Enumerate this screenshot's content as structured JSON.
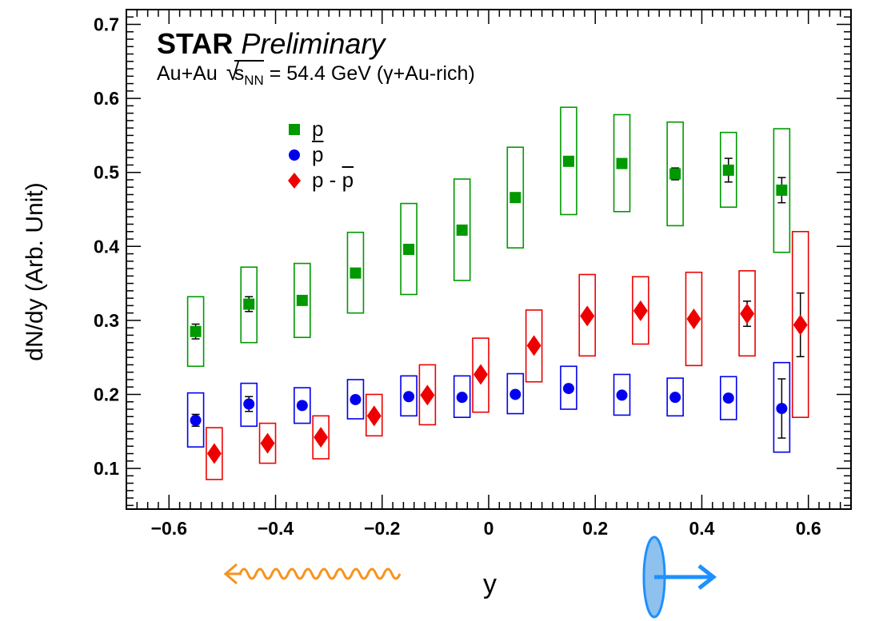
{
  "title": {
    "experiment": "STAR",
    "status": "Preliminary",
    "system": "Au+Au",
    "sqrt_symbol": "√",
    "energy_var": "s",
    "energy_sub": "NN",
    "energy_value": "= 54.4 GeV (γ+Au-rich)"
  },
  "colors": {
    "p": "#009900",
    "pbar": "#0000ee",
    "net_p": "#ee0000",
    "photon_arrow": "#f7931e",
    "nucleus": "#8fc1ee",
    "nucleus_arrow": "#1e90ff"
  },
  "chart_data": {
    "type": "scatter",
    "xlabel": "y",
    "ylabel": "dN/dy (Arb. Unit)",
    "xlim": [
      -0.68,
      0.68
    ],
    "ylim": [
      0.045,
      0.72
    ],
    "x_ticks": [
      -0.6,
      -0.4,
      -0.2,
      0,
      0.2,
      0.4,
      0.6
    ],
    "x_tick_labels": [
      "−0.6",
      "−0.4",
      "−0.2",
      "0",
      "0.2",
      "0.4",
      "0.6"
    ],
    "y_ticks": [
      0.1,
      0.2,
      0.3,
      0.4,
      0.5,
      0.6,
      0.7
    ],
    "y_tick_labels": [
      "0.1",
      "0.2",
      "0.3",
      "0.4",
      "0.5",
      "0.6",
      "0.7"
    ],
    "legend_position": "upper-left",
    "series": [
      {
        "key": "p",
        "name": "p",
        "marker": "square",
        "x": [
          -0.55,
          -0.45,
          -0.35,
          -0.25,
          -0.15,
          -0.05,
          0.05,
          0.15,
          0.25,
          0.35,
          0.45,
          0.55
        ],
        "y": [
          0.285,
          0.322,
          0.327,
          0.364,
          0.396,
          0.422,
          0.466,
          0.515,
          0.512,
          0.498,
          0.503,
          0.476
        ],
        "stat_err": [
          0.01,
          0.01,
          0.004,
          0.004,
          0.004,
          0.004,
          0.004,
          0.004,
          0.004,
          0.008,
          0.016,
          0.017
        ],
        "sys_low": [
          0.238,
          0.27,
          0.277,
          0.31,
          0.335,
          0.354,
          0.398,
          0.443,
          0.447,
          0.428,
          0.453,
          0.392
        ],
        "sys_high": [
          0.332,
          0.372,
          0.377,
          0.419,
          0.458,
          0.491,
          0.534,
          0.588,
          0.578,
          0.568,
          0.554,
          0.559
        ]
      },
      {
        "key": "pbar",
        "name": "p̄",
        "marker": "circle",
        "x": [
          -0.55,
          -0.45,
          -0.35,
          -0.25,
          -0.15,
          -0.05,
          0.05,
          0.15,
          0.25,
          0.35,
          0.45,
          0.55
        ],
        "y": [
          0.165,
          0.187,
          0.185,
          0.193,
          0.197,
          0.196,
          0.2,
          0.208,
          0.199,
          0.196,
          0.195,
          0.181
        ],
        "stat_err": [
          0.008,
          0.01,
          0.004,
          0.003,
          0.003,
          0.003,
          0.003,
          0.003,
          0.003,
          0.003,
          0.003,
          0.04
        ],
        "sys_low": [
          0.129,
          0.157,
          0.161,
          0.167,
          0.171,
          0.169,
          0.174,
          0.18,
          0.172,
          0.171,
          0.166,
          0.122
        ],
        "sys_high": [
          0.202,
          0.215,
          0.209,
          0.22,
          0.225,
          0.225,
          0.228,
          0.238,
          0.227,
          0.222,
          0.224,
          0.243
        ]
      },
      {
        "key": "net_p",
        "name": "p - p̄",
        "marker": "diamond",
        "x": [
          -0.515,
          -0.415,
          -0.315,
          -0.215,
          -0.115,
          -0.015,
          0.085,
          0.185,
          0.285,
          0.385,
          0.485,
          0.585
        ],
        "y": [
          0.12,
          0.134,
          0.142,
          0.171,
          0.199,
          0.227,
          0.266,
          0.306,
          0.313,
          0.302,
          0.309,
          0.294
        ],
        "stat_err": [
          0.004,
          0.004,
          0.004,
          0.004,
          0.004,
          0.004,
          0.004,
          0.004,
          0.004,
          0.006,
          0.017,
          0.043
        ],
        "sys_low": [
          0.085,
          0.107,
          0.113,
          0.144,
          0.159,
          0.176,
          0.217,
          0.252,
          0.268,
          0.239,
          0.252,
          0.169
        ],
        "sys_high": [
          0.155,
          0.161,
          0.171,
          0.2,
          0.24,
          0.276,
          0.314,
          0.362,
          0.359,
          0.365,
          0.367,
          0.42
        ]
      }
    ]
  }
}
